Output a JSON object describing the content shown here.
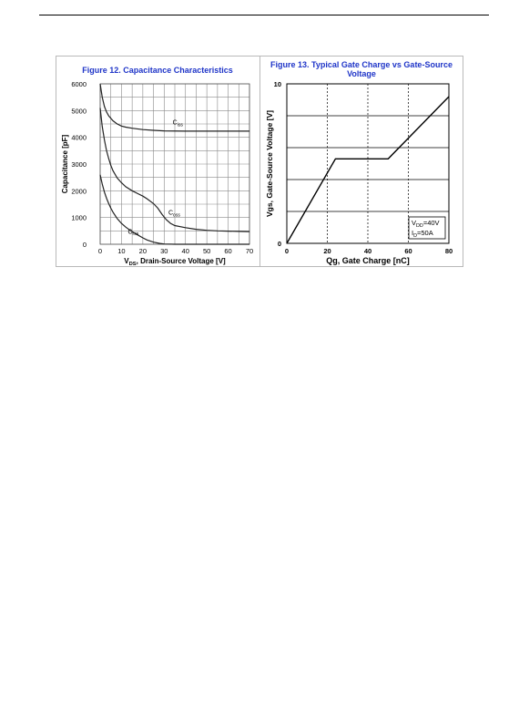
{
  "chart_data": [
    {
      "type": "line",
      "title": "Figure 12. Capacitance Characteristics",
      "xlabel": "VDS, Drain-Source Voltage [V]",
      "xlabel_parts": {
        "main": "V",
        "sub": "DS",
        "rest": ", Drain-Source Voltage [V]"
      },
      "ylabel": "Capacitance [pF]",
      "xlim": [
        0,
        70
      ],
      "ylim": [
        0,
        6000
      ],
      "xticks": [
        0,
        10,
        20,
        30,
        40,
        50,
        60,
        70
      ],
      "yticks": [
        0,
        1000,
        2000,
        3000,
        4000,
        5000,
        6000
      ],
      "grid": true,
      "series": [
        {
          "name": "Ciss",
          "label_main": "C",
          "label_sub": "iss",
          "x": [
            0,
            1,
            2,
            3,
            4,
            6,
            8,
            10,
            12,
            15,
            20,
            25,
            30,
            40,
            50,
            60,
            70
          ],
          "y": [
            6000,
            5500,
            5150,
            4950,
            4800,
            4620,
            4500,
            4420,
            4380,
            4340,
            4290,
            4260,
            4240,
            4230,
            4230,
            4230,
            4230
          ]
        },
        {
          "name": "Coss",
          "label_main": "C",
          "label_sub": "oss",
          "x": [
            0,
            1,
            2,
            3,
            4,
            5,
            6,
            8,
            10,
            12,
            15,
            18,
            20,
            22,
            25,
            27,
            29,
            31,
            33,
            35,
            40,
            45,
            50,
            55,
            60,
            65,
            70
          ],
          "y": [
            5100,
            4400,
            3900,
            3500,
            3200,
            2950,
            2750,
            2480,
            2300,
            2150,
            2000,
            1880,
            1800,
            1700,
            1520,
            1350,
            1120,
            920,
            780,
            700,
            620,
            560,
            520,
            500,
            490,
            480,
            470
          ]
        },
        {
          "name": "Crss",
          "label_main": "C",
          "label_sub": "rss",
          "x": [
            0,
            1,
            2,
            3,
            4,
            5,
            6,
            8,
            10,
            12,
            15,
            18,
            20,
            22,
            25,
            28,
            30,
            35,
            40,
            50,
            60,
            70
          ],
          "y": [
            2600,
            2250,
            1950,
            1720,
            1520,
            1350,
            1200,
            960,
            780,
            640,
            470,
            330,
            240,
            160,
            80,
            30,
            10,
            0,
            0,
            0,
            0,
            0
          ]
        }
      ]
    },
    {
      "type": "line",
      "title": "Figure 13. Typical Gate Charge vs Gate-Source Voltage",
      "xlabel": "Qg, Gate Charge [nC]",
      "ylabel": "Vgs, Gate-Source Voltage [V]",
      "xlim": [
        0,
        80
      ],
      "ylim": [
        0,
        10
      ],
      "xticks": [
        0,
        20,
        40,
        60,
        80
      ],
      "yticks": [
        0,
        10
      ],
      "grid_vertical": "dashed",
      "series": [
        {
          "x": [
            0,
            24,
            50,
            80
          ],
          "y": [
            0,
            5.3,
            5.3,
            9.2
          ]
        }
      ],
      "annotation": {
        "line1_main": "V",
        "line1_sub": "DD",
        "line1_rest": "=40V",
        "line2_main": "I",
        "line2_sub": "D",
        "line2_rest": "=50A"
      }
    }
  ]
}
